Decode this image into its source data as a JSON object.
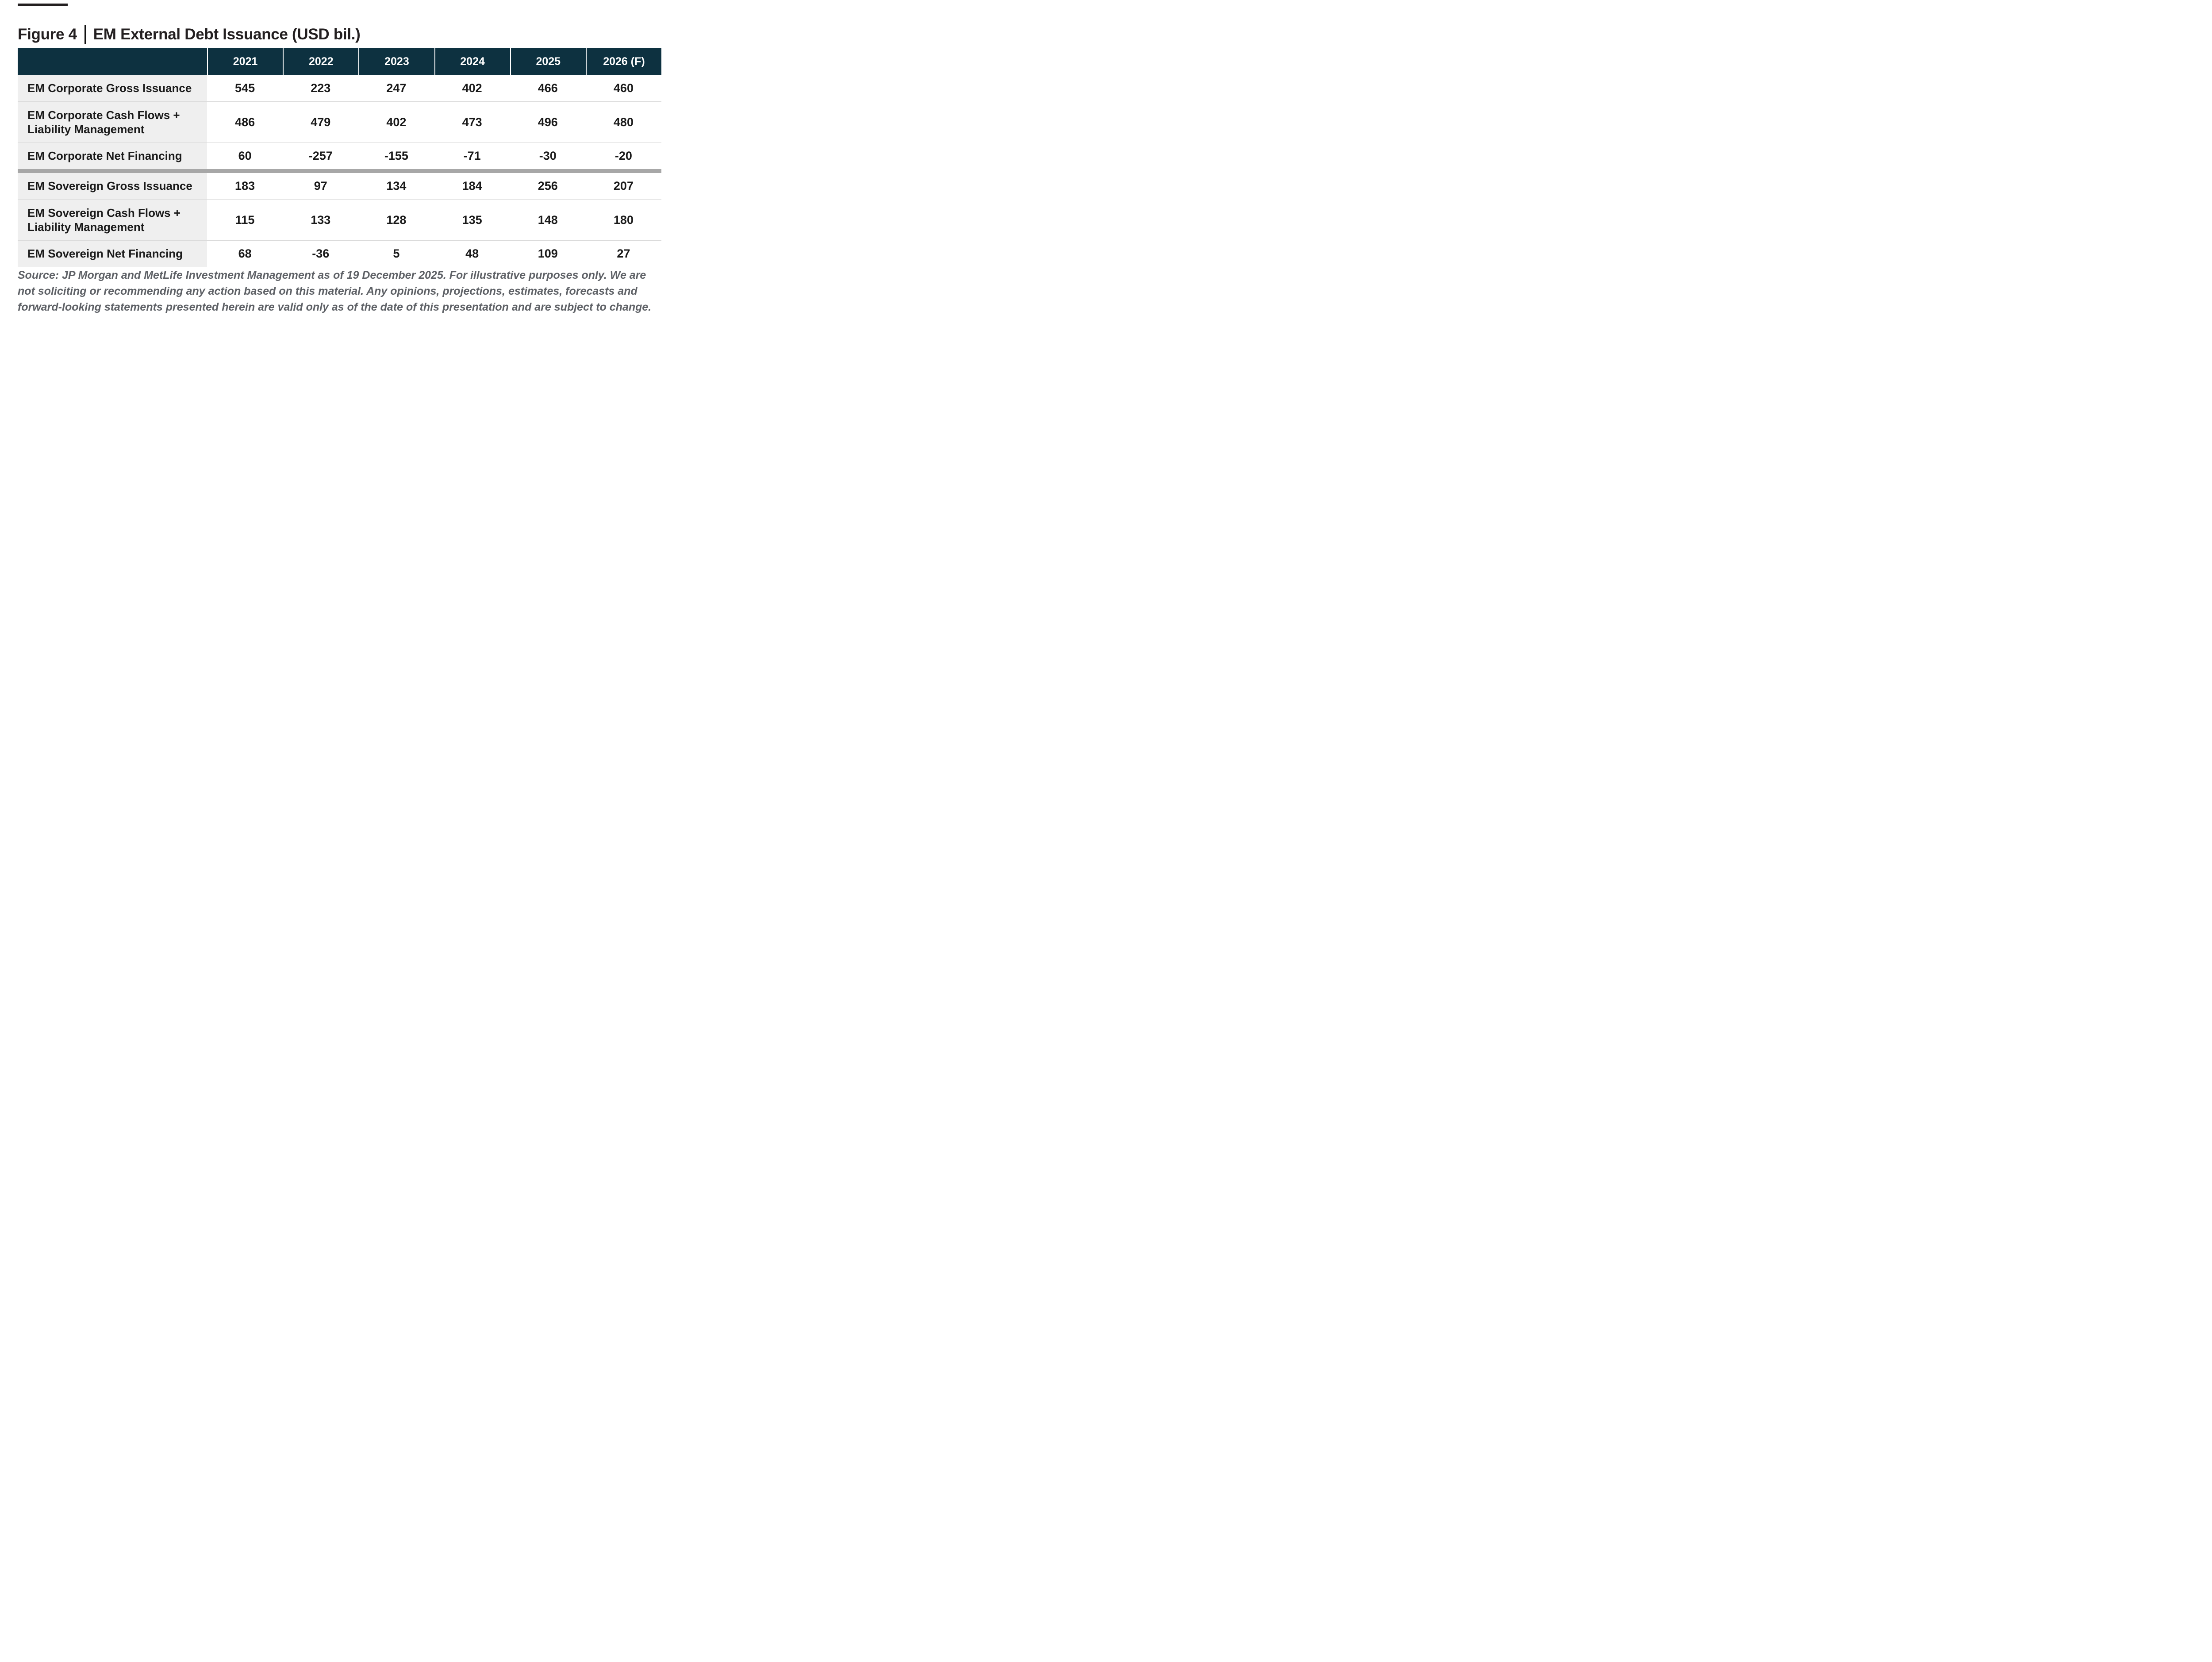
{
  "title": {
    "figure_label": "Figure 4",
    "separator": "|",
    "text": "EM External Debt Issuance (USD bil.)"
  },
  "table": {
    "columns": [
      "2021",
      "2022",
      "2023",
      "2024",
      "2025",
      "2026 (F)"
    ],
    "rows": [
      {
        "label": "EM Corporate Gross Issuance",
        "values": [
          "545",
          "223",
          "247",
          "402",
          "466",
          "460"
        ]
      },
      {
        "label": "EM Corporate Cash Flows + Liability Management",
        "values": [
          "486",
          "479",
          "402",
          "473",
          "496",
          "480"
        ]
      },
      {
        "label": "EM Corporate Net Financing",
        "values": [
          "60",
          "-257",
          "-155",
          "-71",
          "-30",
          "-20"
        ]
      },
      {
        "label": "EM Sovereign Gross Issuance",
        "values": [
          "183",
          "97",
          "134",
          "184",
          "256",
          "207"
        ]
      },
      {
        "label": "EM Sovereign Cash Flows + Liability Management",
        "values": [
          "115",
          "133",
          "128",
          "135",
          "148",
          "180"
        ]
      },
      {
        "label": "EM Sovereign Net Financing",
        "values": [
          "68",
          "-36",
          "5",
          "48",
          "109",
          "27"
        ]
      }
    ]
  },
  "source_note": "Source: JP Morgan and MetLife Investment Management as of 19 December 2025. For illustrative purposes only. We are not soliciting or recommending any action based on this material. Any opinions, projections, estimates, forecasts and forward-looking statements presented herein are valid only as of the date of this presentation and are subject to change.",
  "colors": {
    "header_bg": "#0D3140",
    "header_text": "#FFFFFF",
    "label_column_bg": "#EFEFEF",
    "row_divider": "#DBDBDB",
    "section_divider": "#A7A7A7",
    "body_text": "#1A1A1A",
    "title_text": "#231F20",
    "source_text": "#5E6166"
  }
}
